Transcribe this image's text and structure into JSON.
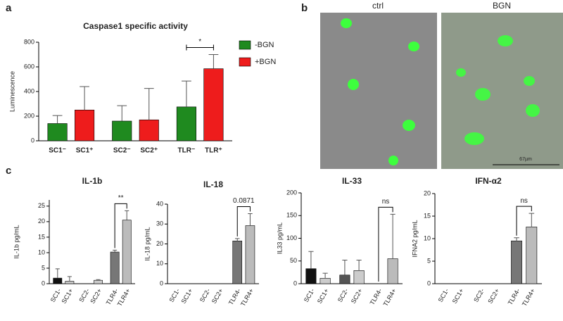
{
  "panel_labels": [
    "a",
    "b",
    "c"
  ],
  "images": [
    {
      "label": "ctrl"
    },
    {
      "label": "BGN",
      "scale_bar": "67µm"
    }
  ],
  "chart_data": [
    {
      "type": "bar",
      "title": "Caspase1 specific activity",
      "y_label": "Luminescence",
      "categories": [
        "SC1⁻",
        "SC1⁺",
        "SC2⁻",
        "SC2⁺",
        "TLR⁻",
        "TLR⁺"
      ],
      "series": [
        {
          "name": "-BGN",
          "color": "#1f8a1f",
          "values": [
            140,
            null,
            160,
            null,
            275,
            null
          ],
          "errors": [
            65,
            null,
            125,
            null,
            210,
            null
          ]
        },
        {
          "name": "+BGN",
          "color": "#ee1c1c",
          "values": [
            null,
            250,
            null,
            170,
            null,
            585
          ],
          "errors": [
            null,
            190,
            null,
            255,
            null,
            115
          ]
        }
      ],
      "ylim": [
        0,
        800
      ],
      "yticks": [
        0,
        200,
        400,
        600,
        800
      ],
      "annotation": "*",
      "legend": "right"
    },
    {
      "type": "bar",
      "title": "IL-1b",
      "y_label": "IL-1b pg/mL",
      "categories": [
        "SC1-",
        "SC1+",
        "SC2-",
        "SC2+",
        "TLR4-",
        "TLR4+"
      ],
      "values": [
        1.8,
        0.8,
        0,
        1.1,
        10.2,
        20.5
      ],
      "errors": [
        3.0,
        1.5,
        null,
        0.2,
        0.6,
        3.0
      ],
      "colors": [
        "#111111",
        "#cccccc",
        "#555555",
        "#cccccc",
        "#777777",
        "#bbbbbb"
      ],
      "ylim": [
        0,
        27
      ],
      "yticks": [
        0,
        5,
        10,
        15,
        20,
        25
      ],
      "annotation": "**"
    },
    {
      "type": "bar",
      "title": "IL-18",
      "y_label": "IL-18 pg/mL",
      "categories": [
        "SC1-",
        "SC1+",
        "SC2-",
        "SC2+",
        "TLR4-",
        "TLR4+"
      ],
      "values": [
        0,
        0,
        0,
        0,
        21.5,
        29.2
      ],
      "errors": [
        null,
        null,
        null,
        null,
        1.2,
        6.0
      ],
      "colors": [
        "#111111",
        "#cccccc",
        "#555555",
        "#cccccc",
        "#777777",
        "#bbbbbb"
      ],
      "ylim": [
        0,
        40
      ],
      "yticks": [
        0,
        10,
        20,
        30,
        40
      ],
      "annotation": "0.0871"
    },
    {
      "type": "bar",
      "title": "IL-33",
      "y_label": "IL33 pg/mL",
      "categories": [
        "SC1-",
        "SC1+",
        "SC2-",
        "SC2+",
        "TLR4-",
        "TLR4+"
      ],
      "values": [
        33,
        12,
        19,
        29,
        0,
        55
      ],
      "errors": [
        38,
        11,
        33,
        23,
        null,
        98
      ],
      "colors": [
        "#111111",
        "#cccccc",
        "#555555",
        "#cccccc",
        "#777777",
        "#bbbbbb"
      ],
      "ylim": [
        0,
        200
      ],
      "yticks": [
        0,
        50,
        100,
        150,
        200
      ],
      "annotation": "ns"
    },
    {
      "type": "bar",
      "title": "IFN-α2",
      "y_label": "IFNA2 pg/mL",
      "categories": [
        "SC1-",
        "SC1+",
        "SC2-",
        "SC2+",
        "TLR4-",
        "TLR4+"
      ],
      "values": [
        0,
        0,
        0,
        0,
        9.5,
        12.6
      ],
      "errors": [
        null,
        null,
        null,
        null,
        0.7,
        3.0
      ],
      "colors": [
        "#111111",
        "#cccccc",
        "#555555",
        "#cccccc",
        "#777777",
        "#bbbbbb"
      ],
      "ylim": [
        0,
        20
      ],
      "yticks": [
        0,
        5,
        10,
        15,
        20
      ],
      "annotation": "ns"
    }
  ]
}
